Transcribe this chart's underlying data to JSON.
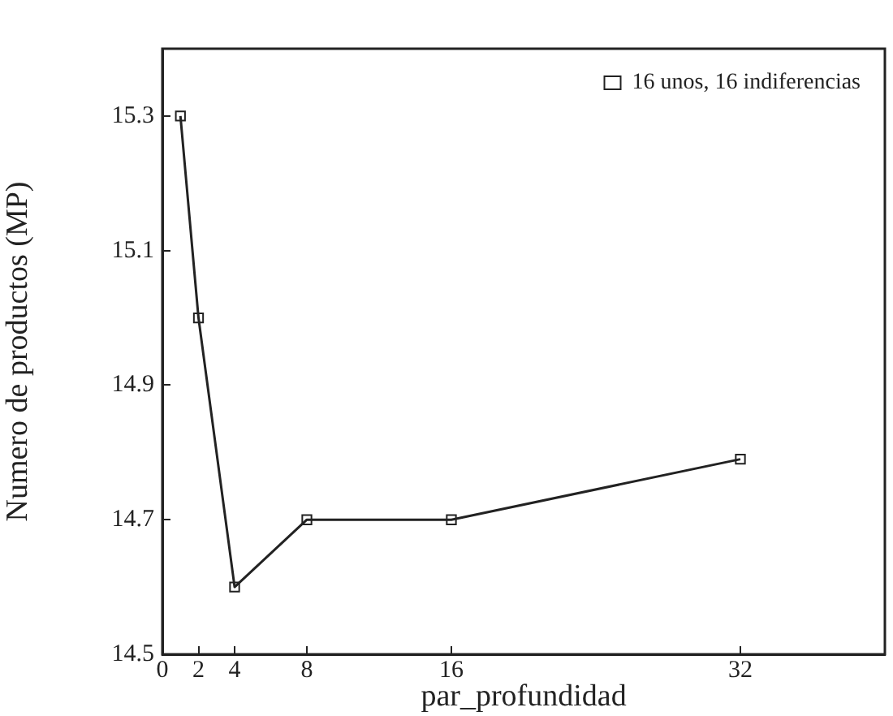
{
  "chart_data": {
    "type": "line",
    "xlabel": "par_profundidad",
    "ylabel": "Numero de productos (MP)",
    "x": [
      1,
      2,
      4,
      8,
      16,
      32
    ],
    "series": [
      {
        "name": "16 unos, 16 indiferencias",
        "color": "#222222",
        "values": [
          15.3,
          15.0,
          14.6,
          14.7,
          14.7,
          14.79
        ]
      }
    ],
    "xlim": [
      0,
      40
    ],
    "xticks": [
      0,
      2,
      4,
      8,
      16,
      32
    ],
    "ylim": [
      14.5,
      15.4
    ],
    "yticks": [
      14.5,
      14.7,
      14.9,
      15.1,
      15.3
    ],
    "grid": false,
    "legend": "top right",
    "marker": "square",
    "line_style": "solid"
  }
}
